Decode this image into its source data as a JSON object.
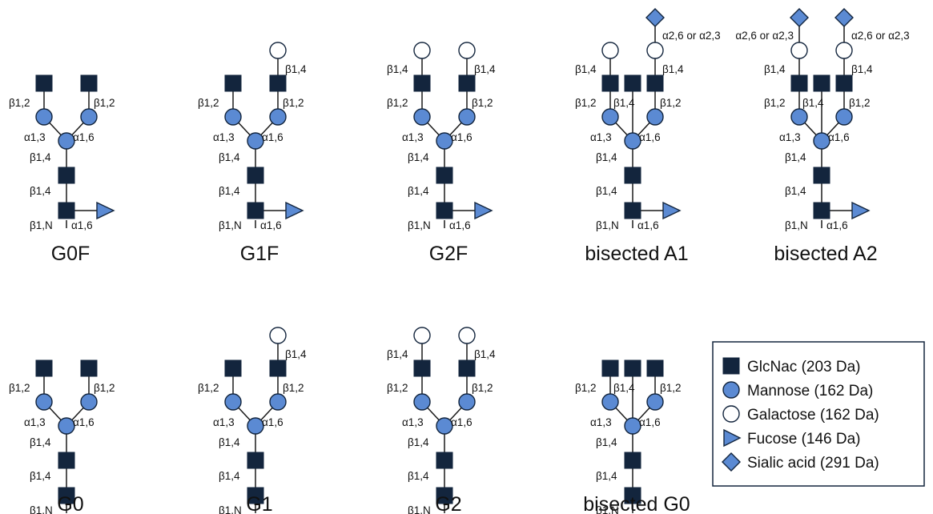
{
  "linkage_labels": {
    "b12": "β1,2",
    "b14": "β1,4",
    "b1N": "β1,N",
    "a13": "α1,3",
    "a16": "α1,6",
    "sialic_link": "α2,6 or α2,3"
  },
  "glycans": [
    {
      "id": "g0f",
      "name": "G0F",
      "fucose": true,
      "bisected": false,
      "galactose": [
        false,
        false
      ],
      "sialic": [
        false,
        false
      ]
    },
    {
      "id": "g1f",
      "name": "G1F",
      "fucose": true,
      "bisected": false,
      "galactose": [
        false,
        true
      ],
      "sialic": [
        false,
        false
      ]
    },
    {
      "id": "g2f",
      "name": "G2F",
      "fucose": true,
      "bisected": false,
      "galactose": [
        true,
        true
      ],
      "sialic": [
        false,
        false
      ]
    },
    {
      "id": "bisected-a1",
      "name": "bisected A1",
      "fucose": true,
      "bisected": true,
      "galactose": [
        true,
        true
      ],
      "sialic": [
        false,
        true
      ]
    },
    {
      "id": "bisected-a2",
      "name": "bisected A2",
      "fucose": true,
      "bisected": true,
      "galactose": [
        true,
        true
      ],
      "sialic": [
        true,
        true
      ]
    },
    {
      "id": "g0",
      "name": "G0",
      "fucose": false,
      "bisected": false,
      "galactose": [
        false,
        false
      ],
      "sialic": [
        false,
        false
      ]
    },
    {
      "id": "g1",
      "name": "G1",
      "fucose": false,
      "bisected": false,
      "galactose": [
        false,
        true
      ],
      "sialic": [
        false,
        false
      ]
    },
    {
      "id": "g2",
      "name": "G2",
      "fucose": false,
      "bisected": false,
      "galactose": [
        true,
        true
      ],
      "sialic": [
        false,
        false
      ]
    },
    {
      "id": "bisected-g0",
      "name": "bisected G0",
      "fucose": false,
      "bisected": true,
      "galactose": [
        false,
        false
      ],
      "sialic": [
        false,
        false
      ]
    }
  ],
  "legend": [
    {
      "symbol": "square",
      "label": "GlcNac (203 Da)",
      "color": "#13253d"
    },
    {
      "symbol": "circle",
      "label": "Mannose (162 Da)",
      "color": "#5b8ad3"
    },
    {
      "symbol": "open-circle",
      "label": "Galactose (162 Da)",
      "color": "#ffffff"
    },
    {
      "symbol": "triangle",
      "label": "Fucose (146 Da)",
      "color": "#5b8ad3"
    },
    {
      "symbol": "diamond",
      "label": "Sialic acid (291 Da)",
      "color": "#5b8ad3"
    }
  ]
}
